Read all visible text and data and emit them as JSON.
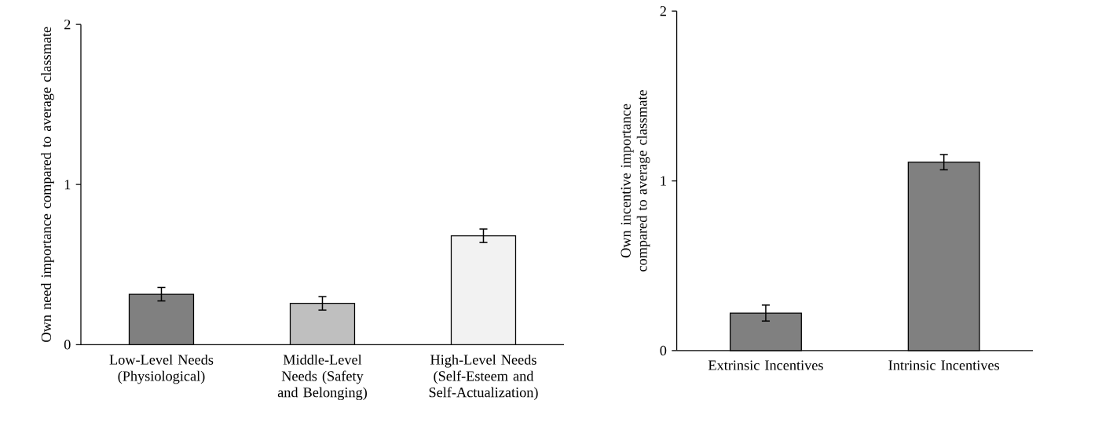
{
  "chart_data": [
    {
      "type": "bar",
      "ylabel": "Own need importance compared to average classmate",
      "categories": [
        "Low-Level Needs (Physiological)",
        "Middle-Level Needs (Safety and Belonging)",
        "High-Level Needs (Self-Esteem and Self-Actualization)"
      ],
      "values": [
        0.315,
        0.258,
        0.68
      ],
      "errors": [
        0.042,
        0.042,
        0.042
      ],
      "colors": [
        "#808080",
        "#bfbfbf",
        "#f2f2f2"
      ],
      "ylim": [
        0,
        2
      ],
      "yticks": [
        0,
        1,
        2
      ]
    },
    {
      "type": "bar",
      "ylabel": "Own incentive importance compared to average classmate",
      "categories": [
        "Extrinsic Incentives",
        "Intrinsic Incentives"
      ],
      "values": [
        0.221,
        1.11
      ],
      "errors": [
        0.047,
        0.045
      ],
      "colors": [
        "#808080",
        "#808080"
      ],
      "ylim": [
        0,
        2
      ],
      "yticks": [
        0,
        1,
        2
      ]
    }
  ]
}
